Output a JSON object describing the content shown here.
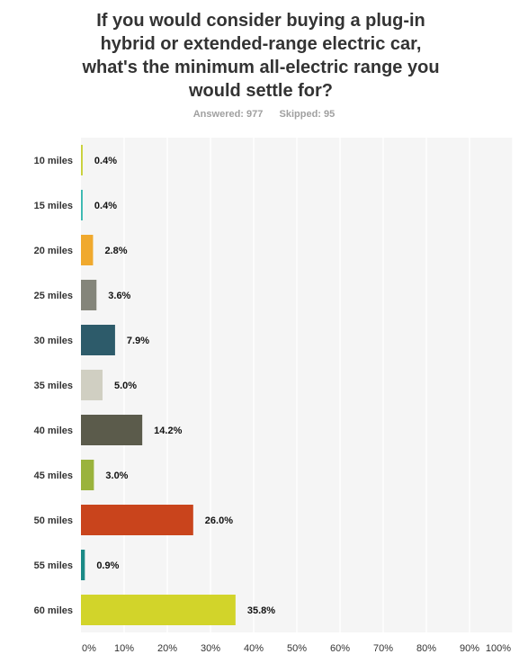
{
  "title_lines": [
    "If you would consider buying a plug-in",
    "hybrid or extended-range electric car,",
    "what's the minimum all-electric range you",
    "would settle for?"
  ],
  "answered_label": "Answered: 977",
  "skipped_label": "Skipped: 95",
  "chart_data": {
    "type": "bar",
    "orientation": "horizontal",
    "categories": [
      "10 miles",
      "15 miles",
      "20 miles",
      "25 miles",
      "30 miles",
      "35 miles",
      "40 miles",
      "45 miles",
      "50 miles",
      "55 miles",
      "60 miles"
    ],
    "values": [
      0.4,
      0.4,
      2.8,
      3.6,
      7.9,
      5.0,
      14.2,
      3.0,
      26.0,
      0.9,
      35.8
    ],
    "value_labels": [
      "0.4%",
      "0.4%",
      "2.8%",
      "3.6%",
      "7.9%",
      "5.0%",
      "14.2%",
      "3.0%",
      "26.0%",
      "0.9%",
      "35.8%"
    ],
    "colors": [
      "#c9d13a",
      "#3ab8b0",
      "#f0a92e",
      "#84857a",
      "#2d5b6a",
      "#d0cfc2",
      "#5b5b4b",
      "#9ab33c",
      "#c9441c",
      "#1a8a86",
      "#d2d42a"
    ],
    "xlim": [
      0,
      100
    ],
    "x_ticks": [
      "0%",
      "10%",
      "20%",
      "30%",
      "40%",
      "50%",
      "60%",
      "70%",
      "80%",
      "90%",
      "100%"
    ],
    "grid": true
  }
}
